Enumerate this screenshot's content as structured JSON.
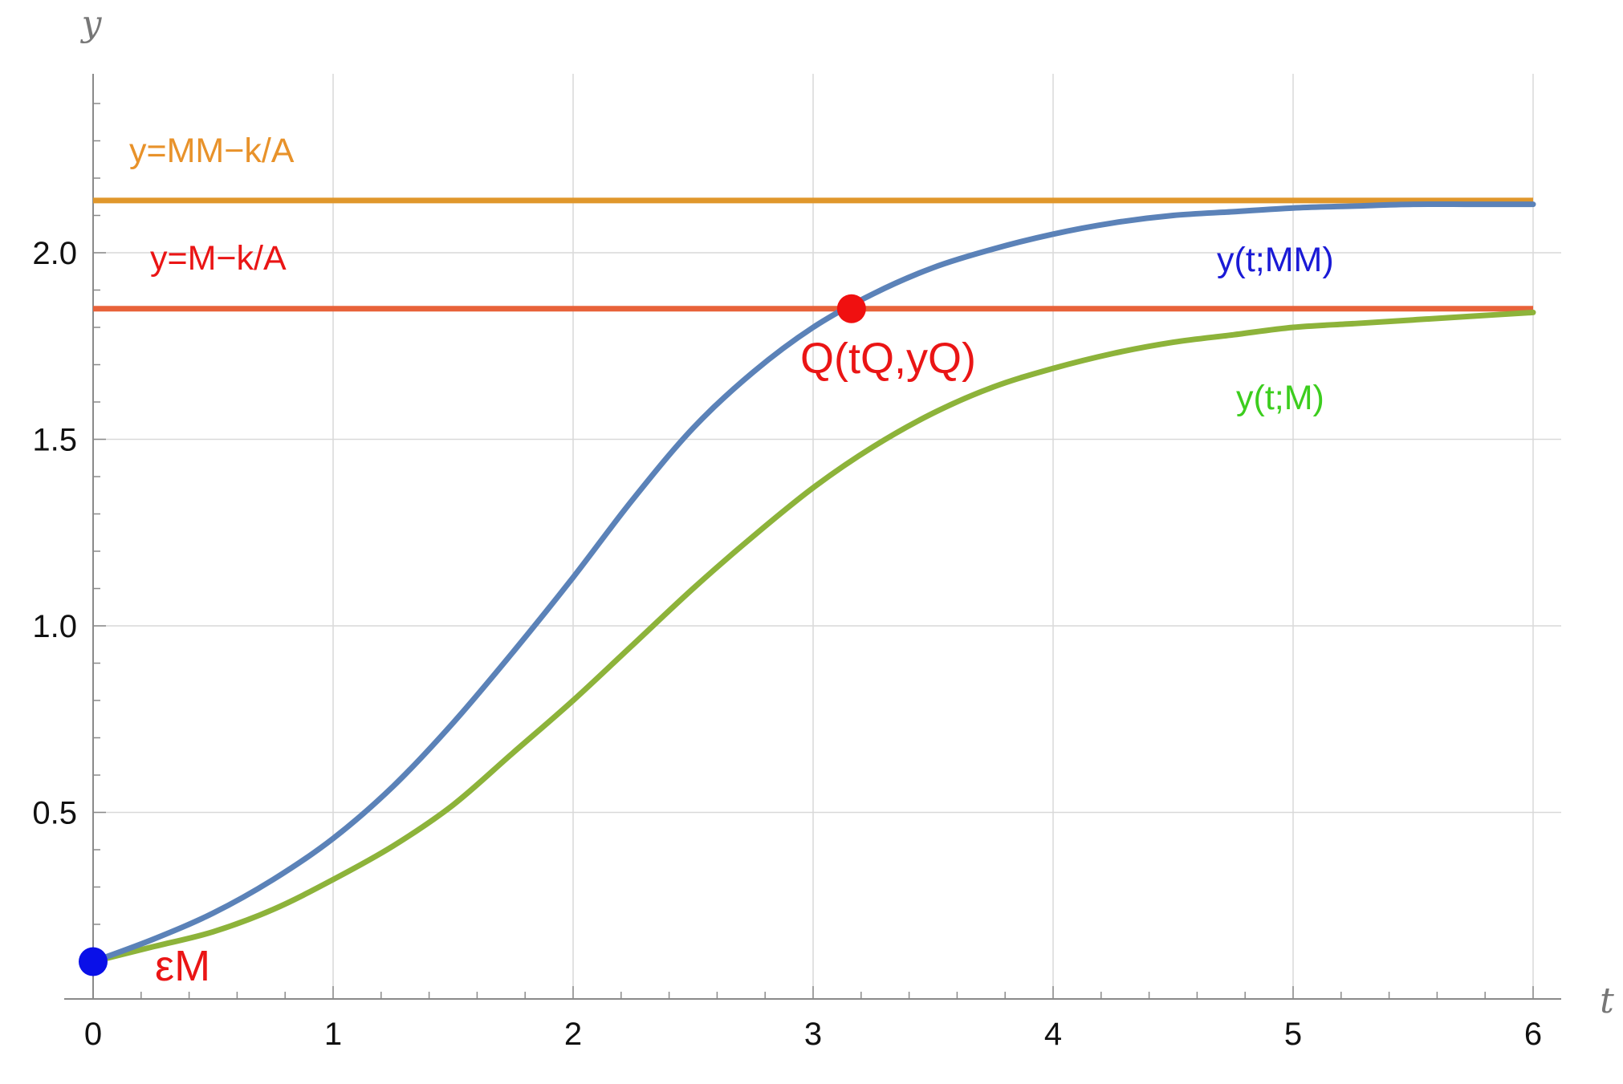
{
  "chart_data": {
    "type": "line",
    "title": "",
    "xlabel": "t",
    "ylabel": "y",
    "xlim": [
      0,
      6
    ],
    "ylim": [
      0,
      2.5
    ],
    "grid": true,
    "x_ticks": [
      {
        "value": 0,
        "label": "0"
      },
      {
        "value": 1,
        "label": "1"
      },
      {
        "value": 2,
        "label": "2"
      },
      {
        "value": 3,
        "label": "3"
      },
      {
        "value": 4,
        "label": "4"
      },
      {
        "value": 5,
        "label": "5"
      },
      {
        "value": 6,
        "label": "6"
      }
    ],
    "y_ticks": [
      {
        "value": 0.5,
        "label": "0.5"
      },
      {
        "value": 1.0,
        "label": "1.0"
      },
      {
        "value": 1.5,
        "label": "1.5"
      },
      {
        "value": 2.0,
        "label": "2.0"
      }
    ],
    "series": [
      {
        "name": "y(t;MM)",
        "color": "#5b82b8",
        "label_color": "#1a1ad6",
        "x": [
          0,
          0.25,
          0.5,
          0.75,
          1.0,
          1.25,
          1.5,
          1.75,
          2.0,
          2.25,
          2.5,
          2.75,
          3.0,
          3.25,
          3.5,
          3.75,
          4.0,
          4.25,
          4.5,
          4.75,
          5.0,
          5.25,
          5.5,
          5.75,
          6.0
        ],
        "y": [
          0.1,
          0.16,
          0.23,
          0.32,
          0.43,
          0.57,
          0.74,
          0.93,
          1.13,
          1.34,
          1.53,
          1.68,
          1.8,
          1.89,
          1.96,
          2.01,
          2.05,
          2.08,
          2.1,
          2.11,
          2.12,
          2.125,
          2.13,
          2.13,
          2.13
        ]
      },
      {
        "name": "y(t;M)",
        "color": "#8db33a",
        "label_color": "#3ccd1e",
        "x": [
          0,
          0.25,
          0.5,
          0.75,
          1.0,
          1.25,
          1.5,
          1.75,
          2.0,
          2.25,
          2.5,
          2.75,
          3.0,
          3.25,
          3.5,
          3.75,
          4.0,
          4.25,
          4.5,
          4.75,
          5.0,
          5.25,
          5.5,
          5.75,
          6.0
        ],
        "y": [
          0.1,
          0.14,
          0.18,
          0.24,
          0.32,
          0.41,
          0.52,
          0.66,
          0.8,
          0.95,
          1.1,
          1.24,
          1.37,
          1.48,
          1.57,
          1.64,
          1.69,
          1.73,
          1.76,
          1.78,
          1.8,
          1.81,
          1.82,
          1.83,
          1.84
        ]
      }
    ],
    "hlines": [
      {
        "y": 2.14,
        "label": "y=MM−k/A",
        "color": "#e0972b",
        "label_color": "#e8922a"
      },
      {
        "y": 1.85,
        "label": "y=M−k/A",
        "color": "#e8623a",
        "label_color": "#ea1515"
      }
    ],
    "points": [
      {
        "x": 0,
        "y": 0.1,
        "label": "εM",
        "color": "#0a10e8",
        "label_color": "#ea1515"
      },
      {
        "x": 3.16,
        "y": 1.85,
        "label": "Q(tQ,yQ)",
        "color": "#f01010",
        "label_color": "#ea1515"
      }
    ]
  }
}
